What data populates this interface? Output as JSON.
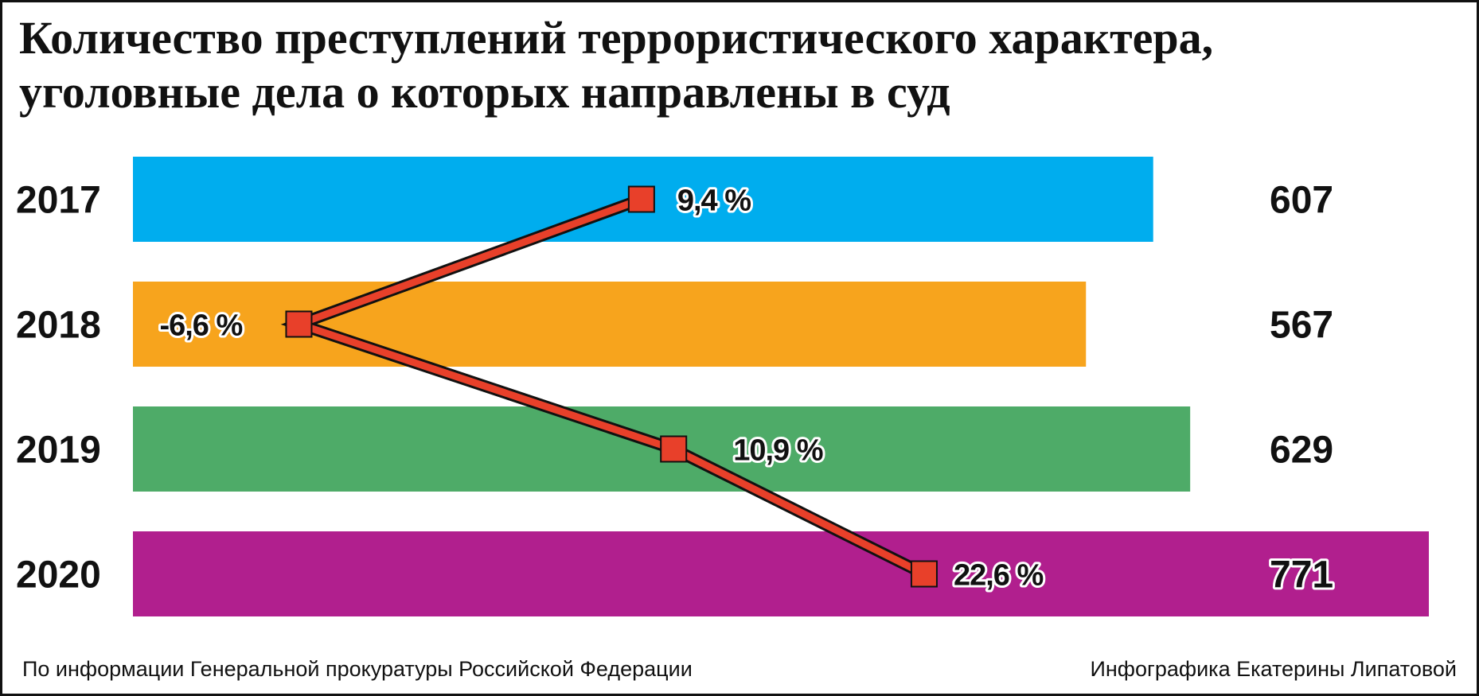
{
  "title": {
    "line1": "Количество преступлений террористического характера,",
    "line2": "уголовные дела о которых направлены в суд"
  },
  "footer": {
    "source": "По информации Генеральной прокуратуры Российской Федерации",
    "credit": "Инфографика Екатерины Липатовой"
  },
  "colors": {
    "bar_2017": "#00adee",
    "bar_2018": "#f7a41d",
    "bar_2019": "#4eab68",
    "bar_2020": "#b11f8e",
    "line": "#e8402a",
    "marker": "#e8402a"
  },
  "chart_data": {
    "type": "bar",
    "orientation": "horizontal",
    "categories": [
      "2017",
      "2018",
      "2019",
      "2020"
    ],
    "values": [
      607,
      567,
      629,
      771
    ],
    "value_labels": [
      "607",
      "567",
      "629",
      "771"
    ],
    "change_line": {
      "values": [
        9.4,
        -6.6,
        10.9,
        22.6
      ],
      "labels": [
        "9,4 %",
        "-6,6 %",
        "10,9 %",
        "22,6 %"
      ]
    },
    "xlim": [
      0,
      771
    ],
    "grid": false,
    "legend": "none"
  }
}
